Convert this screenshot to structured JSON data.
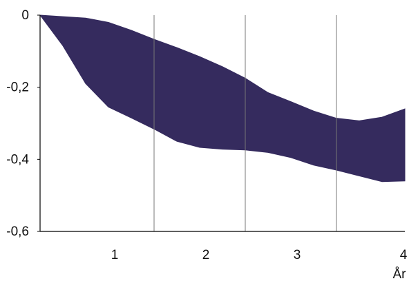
{
  "chart_data": {
    "type": "area",
    "title": "",
    "xlabel": "År",
    "ylabel": "",
    "xlim": [
      0,
      4
    ],
    "ylim": [
      -0.6,
      0
    ],
    "x_ticks": [
      {
        "value": 1,
        "label": "1"
      },
      {
        "value": 2,
        "label": "2"
      },
      {
        "value": 3,
        "label": "3"
      },
      {
        "value": 4,
        "label": "4"
      }
    ],
    "y_ticks": [
      {
        "value": 0,
        "label": "0"
      },
      {
        "value": -0.2,
        "label": "-0,2"
      },
      {
        "value": -0.4,
        "label": "-0,4"
      },
      {
        "value": -0.6,
        "label": "-0,6"
      }
    ],
    "vertical_gridlines_at": [
      1.25,
      2.25,
      3.25
    ],
    "grid": "vertical",
    "legend": "none",
    "band_color": "#352b5e",
    "series": [
      {
        "name": "",
        "x": [
          0,
          0.25,
          0.5,
          0.75,
          1,
          1.25,
          1.5,
          1.75,
          2,
          2.25,
          2.5,
          2.75,
          3,
          3.25,
          3.5,
          3.75,
          4
        ],
        "upper": [
          0,
          -0.004,
          -0.008,
          -0.02,
          -0.042,
          -0.067,
          -0.09,
          -0.115,
          -0.143,
          -0.175,
          -0.215,
          -0.24,
          -0.266,
          -0.286,
          -0.293,
          -0.283,
          -0.26
        ],
        "lower": [
          0,
          -0.085,
          -0.19,
          -0.255,
          -0.285,
          -0.316,
          -0.35,
          -0.367,
          -0.372,
          -0.374,
          -0.381,
          -0.395,
          -0.416,
          -0.43,
          -0.446,
          -0.462,
          -0.46
        ]
      }
    ]
  }
}
